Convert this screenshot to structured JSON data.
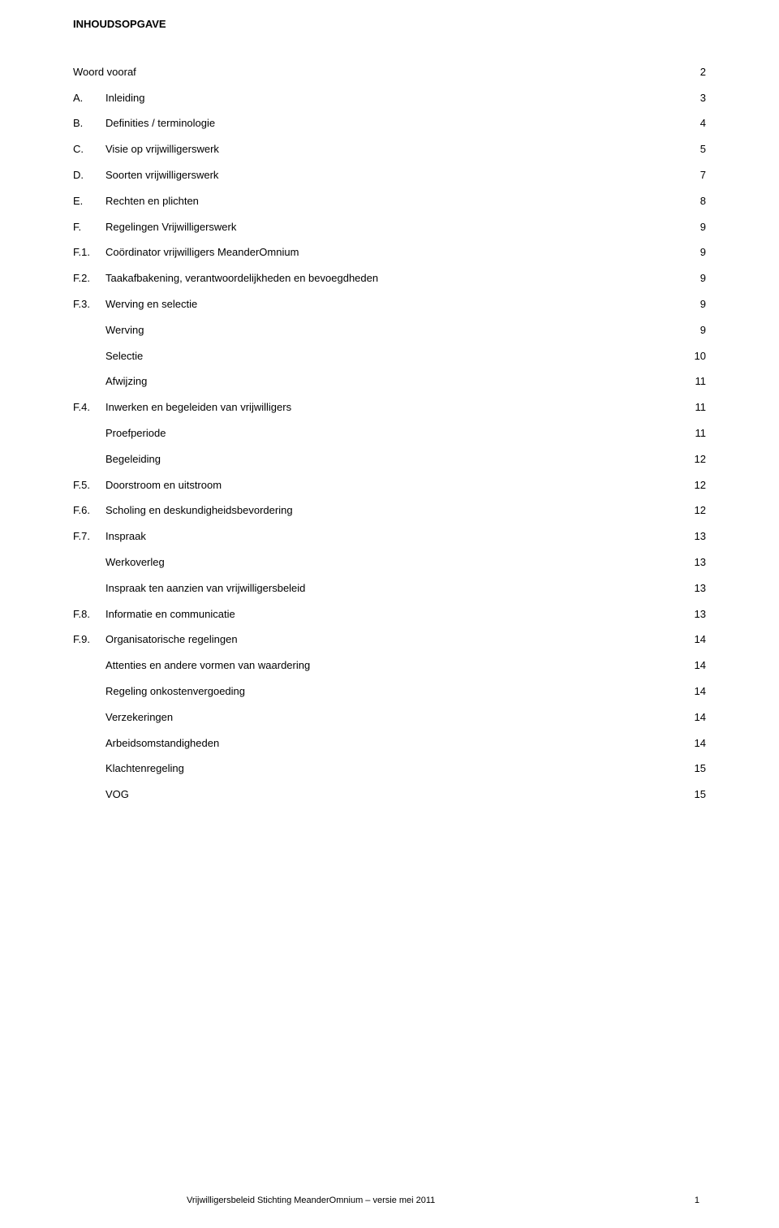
{
  "title": "INHOUDSOPGAVE",
  "toc": [
    {
      "prefix": "",
      "label": "Woord vooraf",
      "page": "2",
      "indent": 0,
      "spaced": false
    },
    {
      "prefix": "A.",
      "label": "Inleiding",
      "page": "3",
      "indent": 0,
      "spaced": false
    },
    {
      "prefix": "B.",
      "label": "Definities / terminologie",
      "page": "4",
      "indent": 0,
      "spaced": false
    },
    {
      "prefix": "C.",
      "label": "Visie op vrijwilligerswerk",
      "page": "5",
      "indent": 0,
      "spaced": false
    },
    {
      "prefix": "D.",
      "label": "Soorten vrijwilligerswerk",
      "page": "7",
      "indent": 0,
      "spaced": false
    },
    {
      "prefix": "E.",
      "label": "Rechten en plichten",
      "page": "8",
      "indent": 0,
      "spaced": false
    },
    {
      "prefix": "F.",
      "label": "Regelingen Vrijwilligerswerk",
      "page": "9",
      "indent": 0,
      "spaced": false
    },
    {
      "prefix": "F.1.",
      "label": "Coördinator vrijwilligers MeanderOmnium",
      "page": "9",
      "indent": 0,
      "spaced": false
    },
    {
      "prefix": "F.2.",
      "label": "Taakafbakening, verantwoordelijkheden en bevoegdheden",
      "page": "9",
      "indent": 0,
      "spaced": false
    },
    {
      "prefix": "F.3.",
      "label": "Werving en selectie",
      "page": "9",
      "indent": 0,
      "spaced": false
    },
    {
      "prefix": "",
      "label": "Werving",
      "page": "9",
      "indent": 1,
      "spaced": false
    },
    {
      "prefix": "",
      "label": "Selectie",
      "page": "10",
      "indent": 1,
      "spaced": false
    },
    {
      "prefix": "",
      "label": "Afwijzing",
      "page": "11",
      "indent": 1,
      "spaced": false
    },
    {
      "prefix": "F.4.",
      "label": "Inwerken en begeleiden van vrijwilligers",
      "page": "11",
      "indent": 0,
      "spaced": false
    },
    {
      "prefix": "",
      "label": "Proefperiode",
      "page": "11",
      "indent": 1,
      "spaced": false
    },
    {
      "prefix": "",
      "label": "Begeleiding",
      "page": "12",
      "indent": 1,
      "spaced": false
    },
    {
      "prefix": "F.5.",
      "label": "Doorstroom en uitstroom",
      "page": "12",
      "indent": 0,
      "spaced": false
    },
    {
      "prefix": "F.6.",
      "label": "Scholing en deskundigheidsbevordering",
      "page": "12",
      "indent": 0,
      "spaced": false
    },
    {
      "prefix": "F.7.",
      "label": "Inspraak",
      "page": "13",
      "indent": 0,
      "spaced": false
    },
    {
      "prefix": "",
      "label": "Werkoverleg",
      "page": "13",
      "indent": 1,
      "spaced": false
    },
    {
      "prefix": "",
      "label": "Inspraak ten aanzien van vrijwilligersbeleid",
      "page": "13",
      "indent": 1,
      "spaced": false
    },
    {
      "prefix": "F.8.",
      "label": "Informatie en communicatie",
      "page": "13",
      "indent": 0,
      "spaced": false
    },
    {
      "prefix": "F.9.",
      "label": "Organisatorische regelingen",
      "page": "14",
      "indent": 0,
      "spaced": false
    },
    {
      "prefix": "",
      "label": "Attenties en andere vormen van waardering",
      "page": "14",
      "indent": 1,
      "spaced": false
    },
    {
      "prefix": "",
      "label": "Regeling onkostenvergoeding",
      "page": "14",
      "indent": 1,
      "spaced": false
    },
    {
      "prefix": "",
      "label": "Verzekeringen",
      "page": "14",
      "indent": 1,
      "spaced": false
    },
    {
      "prefix": "",
      "label": "Arbeidsomstandigheden",
      "page": "14",
      "indent": 1,
      "spaced": true
    },
    {
      "prefix": "",
      "label": "Klachtenregeling",
      "page": "15",
      "indent": 1,
      "spaced": true
    },
    {
      "prefix": "",
      "label": "VOG",
      "page": "15",
      "indent": 1,
      "spaced": true
    }
  ],
  "footer": {
    "text": "Vrijwilligersbeleid Stichting MeanderOmnium  – versie mei 2011",
    "page": "1"
  }
}
